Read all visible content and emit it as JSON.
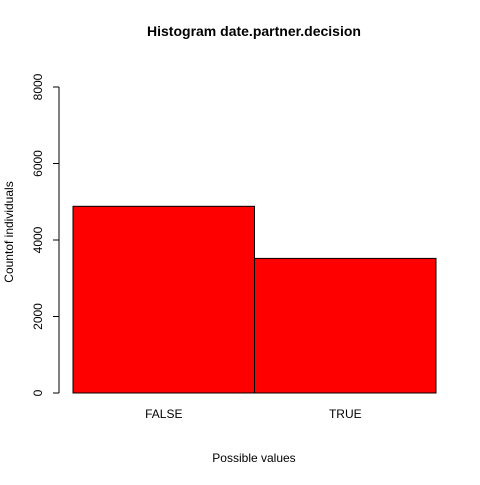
{
  "chart_data": {
    "type": "bar",
    "title": "Histogram date.partner.decision",
    "xlabel": "Possible values",
    "ylabel": "Countof individuals",
    "categories": [
      "FALSE",
      "TRUE"
    ],
    "values": [
      4880,
      3520
    ],
    "ylim": [
      0,
      8000
    ],
    "yticks": [
      0,
      2000,
      4000,
      6000,
      8000
    ],
    "bar_color": "#ff0000",
    "bar_border_color": "#000000",
    "grid": false,
    "legend": "none"
  }
}
